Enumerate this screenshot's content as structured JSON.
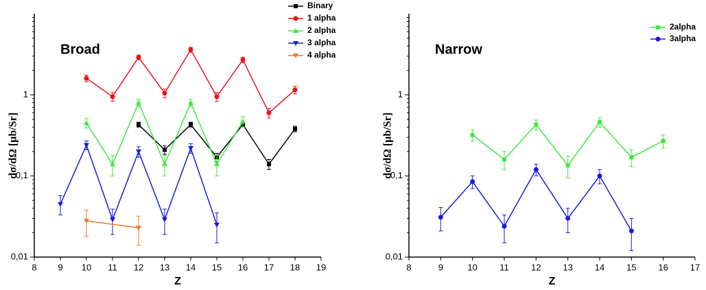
{
  "chart_data": [
    {
      "type": "line",
      "title": "Broad",
      "x_label": "Z",
      "y_label": "dσ/dΩ [μb/Sr]",
      "log_y": true,
      "xlim": [
        8,
        19
      ],
      "xticks": [
        8,
        9,
        10,
        11,
        12,
        13,
        14,
        15,
        16,
        17,
        18,
        19
      ],
      "ylim": [
        0.01,
        10
      ],
      "yticks": [
        {
          "value": 0.01,
          "label": "0,01"
        },
        {
          "value": 0.1,
          "label": "0,1"
        },
        1
      ],
      "legend": "top-right",
      "series": [
        {
          "name": "Binary",
          "color": "#000000",
          "marker": "square",
          "x": [
            12,
            13,
            14,
            15,
            16,
            17,
            18
          ],
          "values": [
            0.43,
            0.21,
            0.43,
            0.17,
            0.43,
            0.14,
            0.38
          ],
          "errors": [
            0.03,
            0.025,
            0.03,
            0.02,
            0.03,
            0.02,
            0.03
          ]
        },
        {
          "name": "1 alpha",
          "color": "#e8141c",
          "marker": "circle",
          "x": [
            10,
            11,
            12,
            13,
            14,
            15,
            16,
            17,
            18
          ],
          "values": [
            1.6,
            0.95,
            2.9,
            1.05,
            3.6,
            0.95,
            2.7,
            0.6,
            1.15
          ],
          "errors": [
            0.15,
            0.12,
            0.2,
            0.13,
            0.25,
            0.12,
            0.2,
            0.08,
            0.12
          ]
        },
        {
          "name": "2 alpha",
          "color": "#3fe83f",
          "marker": "triangle-up",
          "x": [
            10,
            11,
            12,
            13,
            14,
            15,
            16
          ],
          "values": [
            0.45,
            0.14,
            0.8,
            0.14,
            0.8,
            0.14,
            0.47
          ],
          "errors": [
            0.06,
            0.04,
            0.08,
            0.04,
            0.08,
            0.04,
            0.07
          ]
        },
        {
          "name": "3 alpha",
          "color": "#1a1ae0",
          "marker": "triangle-down",
          "x": [
            9,
            10,
            11,
            12,
            13,
            14,
            15
          ],
          "values": [
            0.045,
            0.24,
            0.029,
            0.2,
            0.029,
            0.22,
            0.025
          ],
          "errors": [
            0.012,
            0.03,
            0.01,
            0.03,
            0.01,
            0.03,
            0.01
          ]
        },
        {
          "name": "4 alpha",
          "color": "#f07828",
          "marker": "triangle-down",
          "x": [
            10,
            12
          ],
          "values": [
            0.028,
            0.023
          ],
          "errors": [
            0.01,
            0.009
          ]
        }
      ]
    },
    {
      "type": "line",
      "title": "Narrow",
      "x_label": "Z",
      "y_label": "dσ/dΩ [μb/Sr]",
      "log_y": true,
      "xlim": [
        8,
        17
      ],
      "xticks": [
        8,
        9,
        10,
        11,
        12,
        13,
        14,
        15,
        16,
        17
      ],
      "ylim": [
        0.01,
        10
      ],
      "yticks": [
        {
          "value": 0.01,
          "label": "0,01"
        },
        {
          "value": 0.1,
          "label": "0,1"
        },
        1
      ],
      "legend": "top-right",
      "series": [
        {
          "name": "2alpha",
          "color": "#3fe83f",
          "marker": "square",
          "x": [
            10,
            11,
            12,
            13,
            14,
            15,
            16
          ],
          "values": [
            0.32,
            0.16,
            0.43,
            0.135,
            0.46,
            0.17,
            0.27
          ],
          "errors": [
            0.05,
            0.04,
            0.06,
            0.04,
            0.06,
            0.04,
            0.05
          ]
        },
        {
          "name": "3alpha",
          "color": "#1a1ae0",
          "marker": "circle",
          "x": [
            9,
            10,
            11,
            12,
            13,
            14,
            15
          ],
          "values": [
            0.031,
            0.085,
            0.024,
            0.12,
            0.03,
            0.1,
            0.021
          ],
          "errors": [
            0.01,
            0.015,
            0.009,
            0.02,
            0.01,
            0.02,
            0.009
          ]
        }
      ]
    }
  ]
}
